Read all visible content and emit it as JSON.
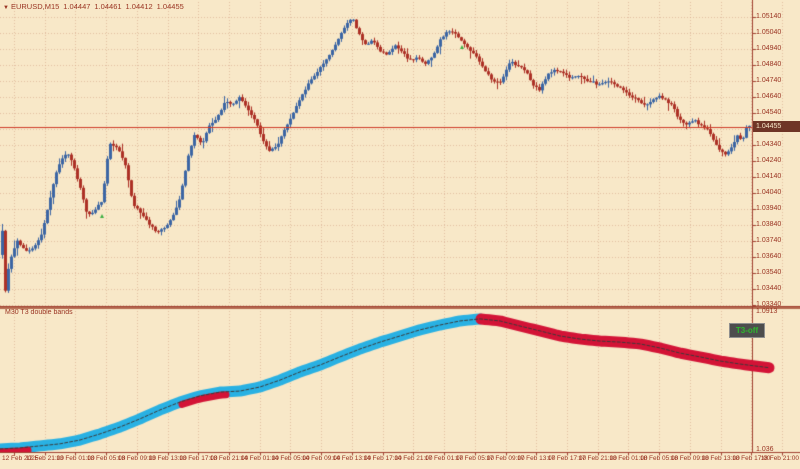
{
  "window": {
    "dropdown_icon": "▼",
    "symbol": "EURUSD,M15",
    "ohlc": {
      "open": "1.04447",
      "high": "1.04461",
      "low": "1.04412",
      "close": "1.04455"
    }
  },
  "price_axis": {
    "labels": [
      "1.05140",
      "1.05040",
      "1.04940",
      "1.04840",
      "1.04740",
      "1.04640",
      "1.04540",
      "1.04440",
      "1.04340",
      "1.04240",
      "1.04140",
      "1.04040",
      "1.03940",
      "1.03840",
      "1.03740",
      "1.03640",
      "1.03540",
      "1.03440",
      "1.03340"
    ],
    "current": "1.04455"
  },
  "time_axis": {
    "labels": [
      "12 Feb 2025",
      "12 Feb 21:00",
      "13 Feb 01:00",
      "13 Feb 05:00",
      "13 Feb 09:00",
      "13 Feb 13:00",
      "13 Feb 17:00",
      "13 Feb 21:00",
      "14 Feb 01:00",
      "14 Feb 05:00",
      "14 Feb 09:00",
      "14 Feb 13:00",
      "14 Feb 17:00",
      "14 Feb 21:00",
      "17 Feb 01:00",
      "17 Feb 05:00",
      "17 Feb 09:00",
      "17 Feb 13:00",
      "17 Feb 17:00",
      "17 Feb 21:00",
      "18 Feb 01:00",
      "18 Feb 05:00",
      "18 Feb 09:00",
      "18 Feb 13:00",
      "18 Feb 17:00",
      "18 Feb 21:00"
    ]
  },
  "subwindow": {
    "label": "M30 T3 double bands",
    "scale_top": "1.0913",
    "scale_bottom": "1.036",
    "badge": "T3-off"
  },
  "colors": {
    "background": "#f8e8c8",
    "grid": "#cf9d7f",
    "text": "#9a3423",
    "axis_line": "#a04030",
    "separator": "#b5684f",
    "bull": "#3c66a4",
    "bear": "#ad3126",
    "bid_line": "#cf3b28",
    "band_up": "#29b1e3",
    "band_down": "#d31336",
    "band_center": "#3a3a3a",
    "marker": "#3cb043",
    "price_box_bg": "#6f3526",
    "price_box_text": "#f8e8c8"
  },
  "chart_data": {
    "type": "candlestick",
    "symbol": "EURUSD",
    "timeframe": "M15",
    "title": "EURUSD,M15",
    "x_range_labels": [
      "12 Feb 2025",
      "18 Feb 21:00"
    ],
    "price_axis_top": 1.0514,
    "price_axis_bottom": 1.0334,
    "current_bid": 1.04455,
    "price_path": [
      [
        2,
        1.03653
      ],
      [
        5,
        1.03809
      ],
      [
        8,
        1.03434
      ],
      [
        12,
        1.03609
      ],
      [
        20,
        1.03746
      ],
      [
        28,
        1.03671
      ],
      [
        36,
        1.03696
      ],
      [
        44,
        1.03778
      ],
      [
        50,
        1.03934
      ],
      [
        58,
        1.04153
      ],
      [
        64,
        1.04246
      ],
      [
        70,
        1.04296
      ],
      [
        76,
        1.04215
      ],
      [
        82,
        1.0409
      ],
      [
        90,
        1.03903
      ],
      [
        98,
        1.03934
      ],
      [
        105,
        1.03996
      ],
      [
        112,
        1.04353
      ],
      [
        120,
        1.04328
      ],
      [
        128,
        1.04215
      ],
      [
        136,
        1.03965
      ],
      [
        145,
        1.03903
      ],
      [
        152,
        1.0384
      ],
      [
        160,
        1.03796
      ],
      [
        168,
        1.03821
      ],
      [
        175,
        1.03884
      ],
      [
        183,
        1.04015
      ],
      [
        190,
        1.04246
      ],
      [
        197,
        1.04403
      ],
      [
        205,
        1.0434
      ],
      [
        212,
        1.04465
      ],
      [
        220,
        1.04509
      ],
      [
        228,
        1.04621
      ],
      [
        235,
        1.0459
      ],
      [
        242,
        1.04634
      ],
      [
        250,
        1.04571
      ],
      [
        258,
        1.04496
      ],
      [
        265,
        1.04371
      ],
      [
        272,
        1.04309
      ],
      [
        280,
        1.0434
      ],
      [
        288,
        1.04446
      ],
      [
        295,
        1.04528
      ],
      [
        302,
        1.04621
      ],
      [
        310,
        1.04715
      ],
      [
        318,
        1.04778
      ],
      [
        325,
        1.0484
      ],
      [
        332,
        1.04903
      ],
      [
        340,
        1.04996
      ],
      [
        348,
        1.0509
      ],
      [
        355,
        1.05134
      ],
      [
        362,
        1.05028
      ],
      [
        368,
        1.04965
      ],
      [
        375,
        1.04996
      ],
      [
        382,
        1.04934
      ],
      [
        390,
        1.04903
      ],
      [
        398,
        1.04965
      ],
      [
        405,
        1.04921
      ],
      [
        412,
        1.04871
      ],
      [
        420,
        1.04884
      ],
      [
        428,
        1.04853
      ],
      [
        436,
        1.04903
      ],
      [
        443,
        1.04996
      ],
      [
        450,
        1.05059
      ],
      [
        457,
        1.05046
      ],
      [
        463,
        1.04996
      ],
      [
        470,
        1.04946
      ],
      [
        478,
        1.04903
      ],
      [
        487,
        1.04809
      ],
      [
        495,
        1.04746
      ],
      [
        503,
        1.04728
      ],
      [
        513,
        1.04859
      ],
      [
        520,
        1.0484
      ],
      [
        528,
        1.04809
      ],
      [
        535,
        1.04715
      ],
      [
        542,
        1.04684
      ],
      [
        550,
        1.04778
      ],
      [
        558,
        1.04809
      ],
      [
        565,
        1.04796
      ],
      [
        572,
        1.04759
      ],
      [
        580,
        1.04778
      ],
      [
        588,
        1.04746
      ],
      [
        595,
        1.04734
      ],
      [
        602,
        1.04715
      ],
      [
        610,
        1.04746
      ],
      [
        618,
        1.04715
      ],
      [
        625,
        1.04684
      ],
      [
        632,
        1.04653
      ],
      [
        640,
        1.04621
      ],
      [
        648,
        1.0459
      ],
      [
        655,
        1.04621
      ],
      [
        662,
        1.04653
      ],
      [
        668,
        1.04621
      ],
      [
        675,
        1.0459
      ],
      [
        682,
        1.04496
      ],
      [
        690,
        1.04465
      ],
      [
        697,
        1.04496
      ],
      [
        703,
        1.04465
      ],
      [
        710,
        1.04434
      ],
      [
        716,
        1.04371
      ],
      [
        722,
        1.04309
      ],
      [
        728,
        1.04278
      ],
      [
        734,
        1.04321
      ],
      [
        740,
        1.04403
      ],
      [
        745,
        1.04371
      ],
      [
        750,
        1.04459
      ]
    ],
    "indicator": {
      "name": "M30 T3 double bands",
      "scale_top": 1.0913,
      "scale_bottom": 1.036,
      "band_path": [
        [
          0,
          1.0372
        ],
        [
          20,
          1.0376
        ],
        [
          40,
          1.0384
        ],
        [
          60,
          1.0392
        ],
        [
          80,
          1.0407
        ],
        [
          100,
          1.0431
        ],
        [
          120,
          1.0458
        ],
        [
          140,
          1.049
        ],
        [
          160,
          1.0525
        ],
        [
          180,
          1.0556
        ],
        [
          200,
          1.058
        ],
        [
          220,
          1.0595
        ],
        [
          240,
          1.0599
        ],
        [
          260,
          1.0615
        ],
        [
          280,
          1.0642
        ],
        [
          300,
          1.0674
        ],
        [
          320,
          1.0701
        ],
        [
          340,
          1.0733
        ],
        [
          360,
          1.0764
        ],
        [
          380,
          1.0791
        ],
        [
          400,
          1.0815
        ],
        [
          420,
          1.0839
        ],
        [
          440,
          1.0858
        ],
        [
          460,
          1.0874
        ],
        [
          480,
          1.0882
        ],
        [
          500,
          1.0874
        ],
        [
          520,
          1.0854
        ],
        [
          540,
          1.0835
        ],
        [
          560,
          1.0815
        ],
        [
          580,
          1.0803
        ],
        [
          600,
          1.0795
        ],
        [
          620,
          1.0791
        ],
        [
          640,
          1.0784
        ],
        [
          660,
          1.0768
        ],
        [
          680,
          1.0748
        ],
        [
          700,
          1.0733
        ],
        [
          720,
          1.0717
        ],
        [
          740,
          1.0705
        ],
        [
          770,
          1.069
        ]
      ],
      "up_segment": [
        0,
        481
      ],
      "down_segment": [
        481,
        770
      ],
      "lower_red_patches": [
        [
          0,
          28
        ],
        [
          182,
          228
        ]
      ]
    },
    "markers": [
      [
        102,
        214
      ],
      [
        462,
        45
      ]
    ]
  }
}
